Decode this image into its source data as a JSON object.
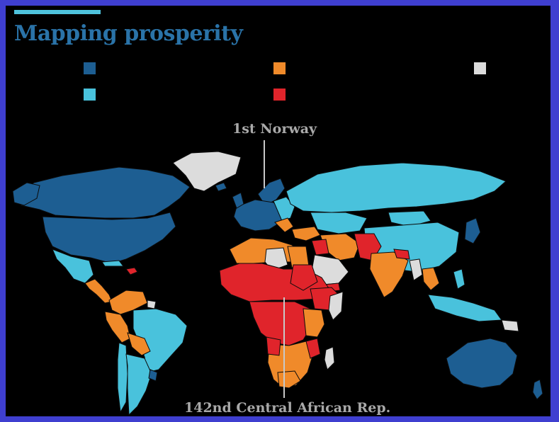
{
  "title": "Mapping prosperity",
  "colors": {
    "title": "#2a73a8",
    "accent": "#4fc3dd",
    "background": "#000000",
    "frame": "#3f3fd0",
    "ocean": "#000000",
    "top_tier": "#1d5e92",
    "upper_tier": "#49c2dc",
    "lower_tier": "#f08a2a",
    "bottom_tier": "#e0242b",
    "no_data": "#dcdcdc",
    "borders": "#0b0b0b"
  },
  "legend": [
    {
      "key": "top_tier",
      "color": "#1d5e92",
      "label": ""
    },
    {
      "key": "upper_tier",
      "color": "#49c2dc",
      "label": ""
    },
    {
      "key": "lower_tier",
      "color": "#f08a2a",
      "label": ""
    },
    {
      "key": "bottom_tier",
      "color": "#e0242b",
      "label": ""
    },
    {
      "key": "no_data",
      "color": "#dcdcdc",
      "label": ""
    }
  ],
  "callouts": {
    "top": "1st Norway",
    "bottom": "142nd Central African Rep."
  }
}
